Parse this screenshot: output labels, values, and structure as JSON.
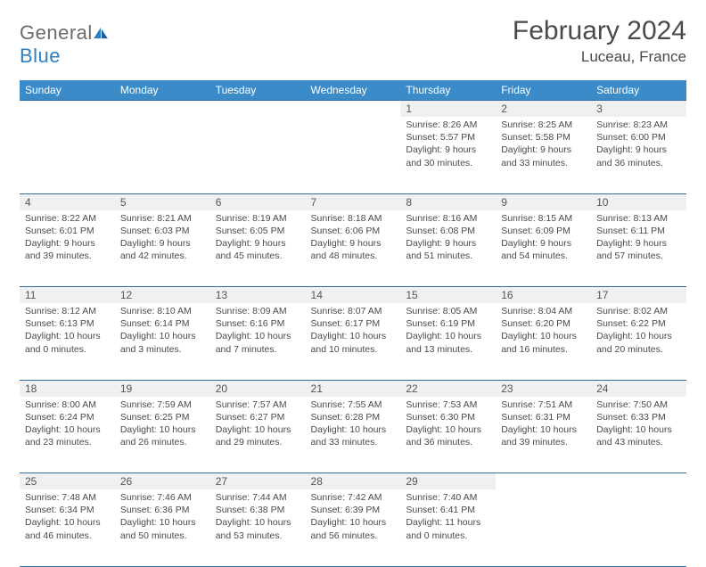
{
  "brand": {
    "part1": "General",
    "part2": "Blue"
  },
  "title": "February 2024",
  "location": "Luceau, France",
  "colors": {
    "header_bg": "#3b8bc8",
    "header_text": "#ffffff",
    "daynum_bg": "#eef0f1",
    "rule": "#2f6fa5",
    "body_text": "#4a4a4a"
  },
  "dayNames": [
    "Sunday",
    "Monday",
    "Tuesday",
    "Wednesday",
    "Thursday",
    "Friday",
    "Saturday"
  ],
  "weeks": [
    [
      null,
      null,
      null,
      null,
      {
        "n": "1",
        "sr": "8:26 AM",
        "ss": "5:57 PM",
        "dl": "9 hours and 30 minutes."
      },
      {
        "n": "2",
        "sr": "8:25 AM",
        "ss": "5:58 PM",
        "dl": "9 hours and 33 minutes."
      },
      {
        "n": "3",
        "sr": "8:23 AM",
        "ss": "6:00 PM",
        "dl": "9 hours and 36 minutes."
      }
    ],
    [
      {
        "n": "4",
        "sr": "8:22 AM",
        "ss": "6:01 PM",
        "dl": "9 hours and 39 minutes."
      },
      {
        "n": "5",
        "sr": "8:21 AM",
        "ss": "6:03 PM",
        "dl": "9 hours and 42 minutes."
      },
      {
        "n": "6",
        "sr": "8:19 AM",
        "ss": "6:05 PM",
        "dl": "9 hours and 45 minutes."
      },
      {
        "n": "7",
        "sr": "8:18 AM",
        "ss": "6:06 PM",
        "dl": "9 hours and 48 minutes."
      },
      {
        "n": "8",
        "sr": "8:16 AM",
        "ss": "6:08 PM",
        "dl": "9 hours and 51 minutes."
      },
      {
        "n": "9",
        "sr": "8:15 AM",
        "ss": "6:09 PM",
        "dl": "9 hours and 54 minutes."
      },
      {
        "n": "10",
        "sr": "8:13 AM",
        "ss": "6:11 PM",
        "dl": "9 hours and 57 minutes."
      }
    ],
    [
      {
        "n": "11",
        "sr": "8:12 AM",
        "ss": "6:13 PM",
        "dl": "10 hours and 0 minutes."
      },
      {
        "n": "12",
        "sr": "8:10 AM",
        "ss": "6:14 PM",
        "dl": "10 hours and 3 minutes."
      },
      {
        "n": "13",
        "sr": "8:09 AM",
        "ss": "6:16 PM",
        "dl": "10 hours and 7 minutes."
      },
      {
        "n": "14",
        "sr": "8:07 AM",
        "ss": "6:17 PM",
        "dl": "10 hours and 10 minutes."
      },
      {
        "n": "15",
        "sr": "8:05 AM",
        "ss": "6:19 PM",
        "dl": "10 hours and 13 minutes."
      },
      {
        "n": "16",
        "sr": "8:04 AM",
        "ss": "6:20 PM",
        "dl": "10 hours and 16 minutes."
      },
      {
        "n": "17",
        "sr": "8:02 AM",
        "ss": "6:22 PM",
        "dl": "10 hours and 20 minutes."
      }
    ],
    [
      {
        "n": "18",
        "sr": "8:00 AM",
        "ss": "6:24 PM",
        "dl": "10 hours and 23 minutes."
      },
      {
        "n": "19",
        "sr": "7:59 AM",
        "ss": "6:25 PM",
        "dl": "10 hours and 26 minutes."
      },
      {
        "n": "20",
        "sr": "7:57 AM",
        "ss": "6:27 PM",
        "dl": "10 hours and 29 minutes."
      },
      {
        "n": "21",
        "sr": "7:55 AM",
        "ss": "6:28 PM",
        "dl": "10 hours and 33 minutes."
      },
      {
        "n": "22",
        "sr": "7:53 AM",
        "ss": "6:30 PM",
        "dl": "10 hours and 36 minutes."
      },
      {
        "n": "23",
        "sr": "7:51 AM",
        "ss": "6:31 PM",
        "dl": "10 hours and 39 minutes."
      },
      {
        "n": "24",
        "sr": "7:50 AM",
        "ss": "6:33 PM",
        "dl": "10 hours and 43 minutes."
      }
    ],
    [
      {
        "n": "25",
        "sr": "7:48 AM",
        "ss": "6:34 PM",
        "dl": "10 hours and 46 minutes."
      },
      {
        "n": "26",
        "sr": "7:46 AM",
        "ss": "6:36 PM",
        "dl": "10 hours and 50 minutes."
      },
      {
        "n": "27",
        "sr": "7:44 AM",
        "ss": "6:38 PM",
        "dl": "10 hours and 53 minutes."
      },
      {
        "n": "28",
        "sr": "7:42 AM",
        "ss": "6:39 PM",
        "dl": "10 hours and 56 minutes."
      },
      {
        "n": "29",
        "sr": "7:40 AM",
        "ss": "6:41 PM",
        "dl": "11 hours and 0 minutes."
      },
      null,
      null
    ]
  ],
  "labels": {
    "sunrise": "Sunrise:",
    "sunset": "Sunset:",
    "daylight": "Daylight:"
  }
}
